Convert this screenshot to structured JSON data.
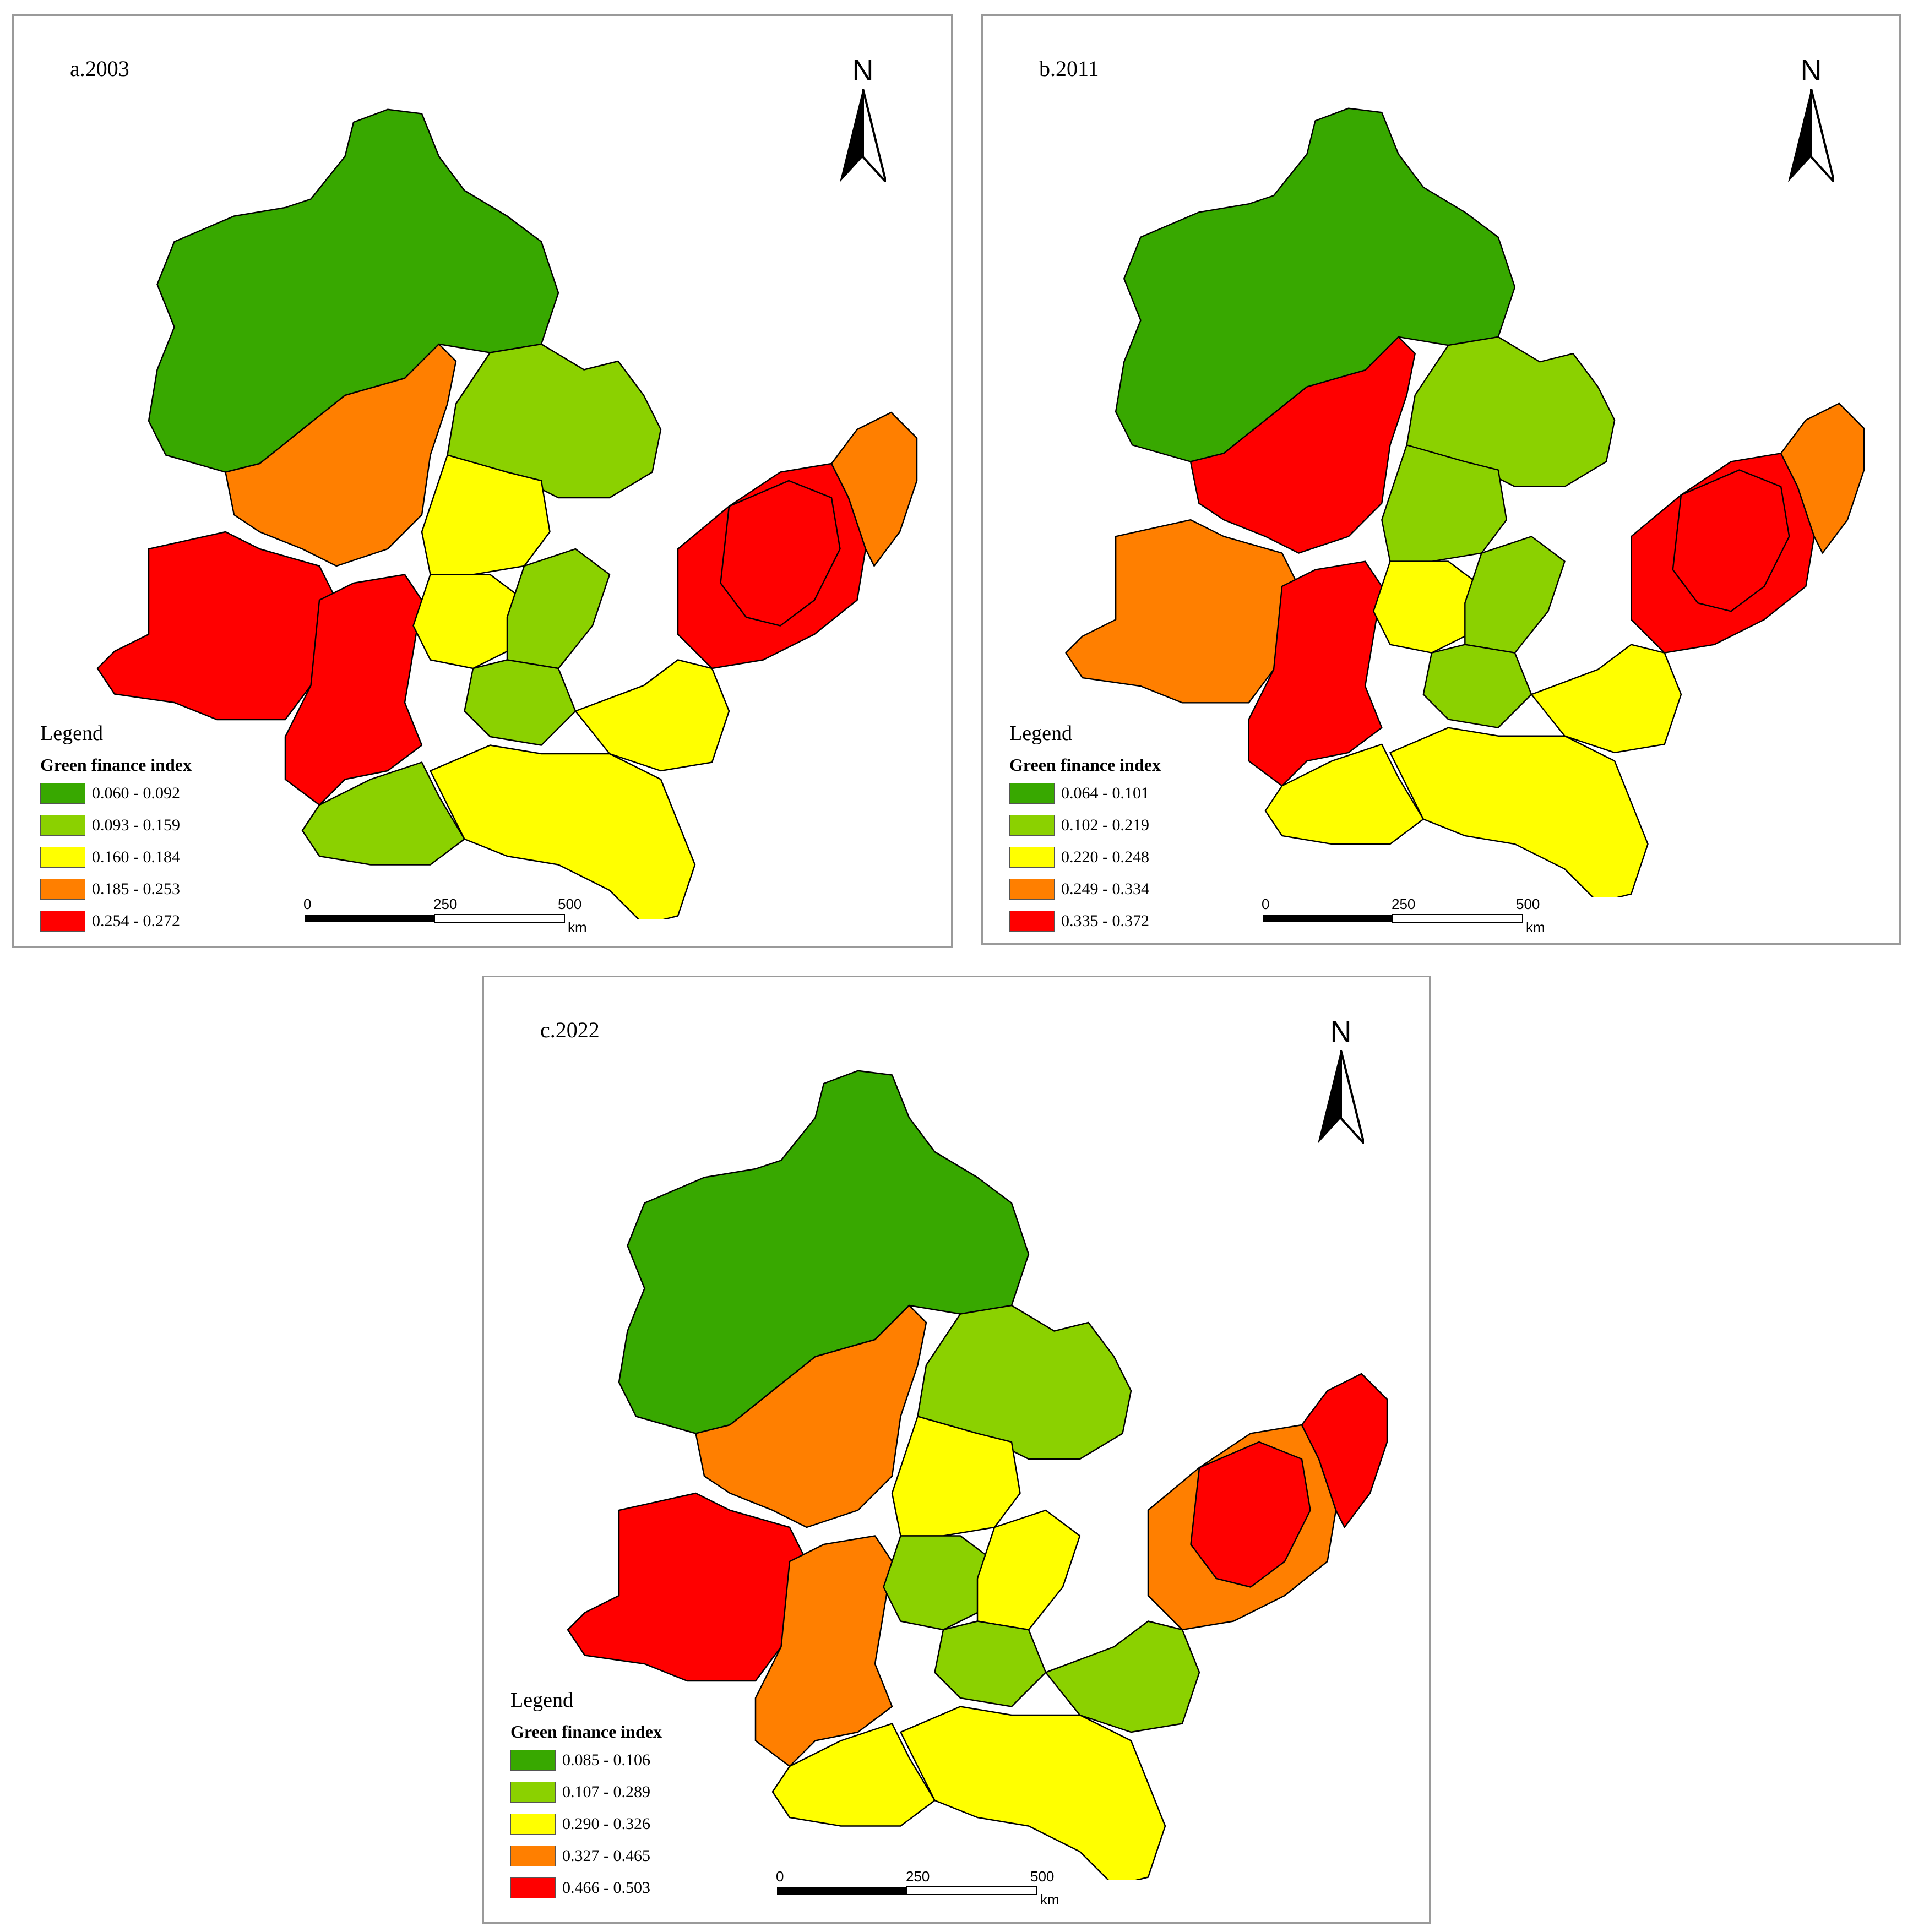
{
  "panels": [
    {
      "title": "a.2003",
      "north_label": "N",
      "legend_heading": "Legend",
      "legend_subtitle": "Green finance index",
      "classes": [
        {
          "range": "0.060 - 0.092",
          "color": "#38a800"
        },
        {
          "range": "0.093 - 0.159",
          "color": "#8bd100"
        },
        {
          "range": "0.160 - 0.184",
          "color": "#ffff00"
        },
        {
          "range": "0.185 - 0.253",
          "color": "#ff7f00"
        },
        {
          "range": "0.254 - 0.272",
          "color": "#ff0000"
        }
      ],
      "region_classes": [
        0,
        3,
        4,
        4,
        1,
        1,
        2,
        2,
        1,
        1,
        2,
        2,
        4,
        3,
        4
      ]
    },
    {
      "title": "b.2011",
      "north_label": "N",
      "legend_heading": "Legend",
      "legend_subtitle": "Green finance index",
      "classes": [
        {
          "range": "0.064 - 0.101",
          "color": "#38a800"
        },
        {
          "range": "0.102 - 0.219",
          "color": "#8bd100"
        },
        {
          "range": "0.220 - 0.248",
          "color": "#ffff00"
        },
        {
          "range": "0.249 - 0.334",
          "color": "#ff7f00"
        },
        {
          "range": "0.335 - 0.372",
          "color": "#ff0000"
        }
      ],
      "region_classes": [
        0,
        4,
        3,
        4,
        2,
        1,
        1,
        2,
        1,
        1,
        2,
        2,
        4,
        3,
        4
      ]
    },
    {
      "title": "c.2022",
      "north_label": "N",
      "legend_heading": "Legend",
      "legend_subtitle": "Green finance index",
      "classes": [
        {
          "range": "0.085 - 0.106",
          "color": "#38a800"
        },
        {
          "range": "0.107 - 0.289",
          "color": "#8bd100"
        },
        {
          "range": "0.290 - 0.326",
          "color": "#ffff00"
        },
        {
          "range": "0.327 - 0.465",
          "color": "#ff7f00"
        },
        {
          "range": "0.466 - 0.503",
          "color": "#ff0000"
        }
      ],
      "region_classes": [
        0,
        3,
        4,
        3,
        2,
        1,
        2,
        1,
        2,
        1,
        1,
        2,
        3,
        4,
        4
      ]
    }
  ],
  "scale": {
    "ticks": [
      "0",
      "250",
      "500"
    ],
    "unit": "km"
  }
}
